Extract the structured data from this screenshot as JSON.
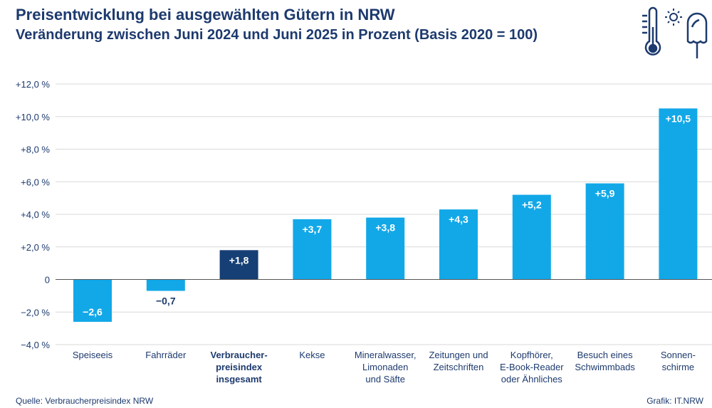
{
  "header": {
    "title": "Preisentwicklung bei ausgewählten Gütern in NRW",
    "subtitle": "Veränderung zwischen Juni 2024 und Juni 2025 in Prozent (Basis 2020 = 100)"
  },
  "footer": {
    "source": "Quelle: Verbraucherpreisindex NRW",
    "credit": "Grafik: IT.NRW"
  },
  "icons": [
    "thermometer-icon",
    "sun-icon",
    "ice-cream-icon"
  ],
  "colors": {
    "bar": "#12a8e8",
    "highlight": "#163f75",
    "text": "#1d3a6e",
    "grid": "#d9d9d9",
    "axis": "#555555"
  },
  "chart_data": {
    "type": "bar",
    "ylim": [
      -4,
      12
    ],
    "yticks": [
      -4,
      -2,
      0,
      2,
      4,
      6,
      8,
      10,
      12
    ],
    "ytick_labels": [
      "−4,0 %",
      "−2,0 %",
      "0",
      "+2,0 %",
      "+4,0 %",
      "+6,0 %",
      "+8,0 %",
      "+10,0 %",
      "+12,0 %"
    ],
    "grid": true,
    "categories": [
      [
        "Speiseeis"
      ],
      [
        "Fahrräder"
      ],
      [
        "Verbraucher-",
        "preisindex",
        "insgesamt"
      ],
      [
        "Kekse"
      ],
      [
        "Mineralwasser,",
        "Limonaden",
        "und Säfte"
      ],
      [
        "Zeitungen und",
        "Zeitschriften"
      ],
      [
        "Kopfhörer,",
        "E-Book-Reader",
        "oder Ähnliches"
      ],
      [
        "Besuch eines",
        "Schwimmbads"
      ],
      [
        "Sonnen-",
        "schirme"
      ]
    ],
    "values": [
      -2.6,
      -0.7,
      1.8,
      3.7,
      3.8,
      4.3,
      5.2,
      5.9,
      10.5
    ],
    "value_labels": [
      "−2,6",
      "−0,7",
      "+1,8",
      "+3,7",
      "+3,8",
      "+4,3",
      "+5,2",
      "+5,9",
      "+10,5"
    ],
    "highlight_index": 2
  }
}
